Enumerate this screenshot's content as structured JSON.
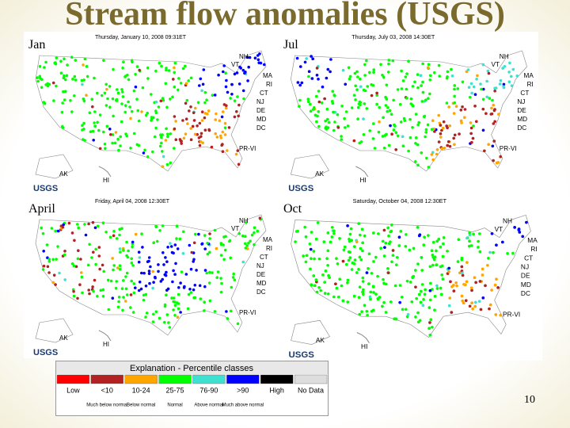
{
  "title": "Stream flow anomalies (USGS)",
  "page_number": "10",
  "maps": [
    {
      "label": "Jan",
      "timestamp": "Thursday, January 10, 2008 09:31ET"
    },
    {
      "label": "Jul",
      "timestamp": "Thursday, July 03, 2008 14:30ET"
    },
    {
      "label": "April",
      "timestamp": "Friday, April 04, 2008 12:30ET"
    },
    {
      "label": "Oct",
      "timestamp": "Saturday, October 04, 2008 12:30ET"
    }
  ],
  "map_labels": {
    "states": [
      "NH",
      "VT",
      "MA",
      "RI",
      "CT",
      "NJ",
      "DE",
      "MD",
      "DC"
    ],
    "pr": "PR-VI",
    "ak": "AK",
    "hi": "HI",
    "logo": "USGS"
  },
  "legend": {
    "title": "Explanation - Percentile classes",
    "classes": [
      {
        "label": "Low",
        "color": "#ff0000"
      },
      {
        "label": "<10",
        "color": "#b22222",
        "description": "Much below normal"
      },
      {
        "label": "10-24",
        "color": "#ffa500",
        "description": "Below normal"
      },
      {
        "label": "25-75",
        "color": "#00ff00",
        "description": "Normal"
      },
      {
        "label": "76-90",
        "color": "#40e0d0",
        "description": "Above normal"
      },
      {
        "label": ">90",
        "color": "#0000ff",
        "description": "Much above normal"
      },
      {
        "label": "High",
        "color": "#000000"
      },
      {
        "label": "No Data",
        "color": "#dddddd"
      }
    ]
  }
}
